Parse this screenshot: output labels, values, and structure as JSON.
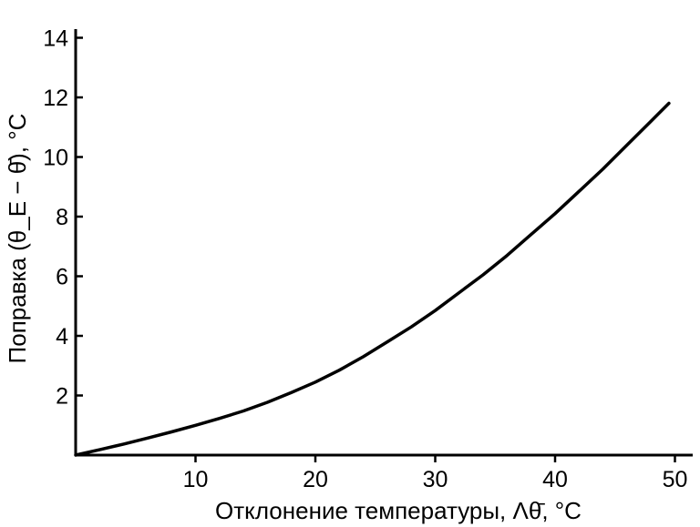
{
  "chart_data": {
    "type": "line",
    "title": "",
    "xlabel": "Отклонение температуры, Λθ̄, °C",
    "ylabel": "Поправка (θ_E − θ̄), °C",
    "xlim": [
      0,
      52
    ],
    "ylim": [
      0,
      14
    ],
    "x_ticks": [
      10,
      20,
      30,
      40,
      50
    ],
    "y_ticks": [
      2,
      4,
      6,
      8,
      10,
      12,
      14
    ],
    "x_tick_labels": [
      "10",
      "20",
      "30",
      "40",
      "50"
    ],
    "y_tick_labels": [
      "2",
      "4",
      "6",
      "8",
      "10",
      "12",
      "14"
    ],
    "grid": false,
    "legend": "none",
    "line_color": "#000000",
    "series": [
      {
        "x": [
          0,
          2,
          4,
          6,
          8,
          10,
          12,
          14,
          16,
          18,
          20,
          22,
          24,
          26,
          28,
          30,
          32,
          34,
          36,
          38,
          40,
          42,
          44,
          46,
          48,
          49.5
        ],
        "values": [
          0,
          0.18,
          0.37,
          0.57,
          0.78,
          1.0,
          1.23,
          1.48,
          1.77,
          2.1,
          2.45,
          2.85,
          3.3,
          3.8,
          4.3,
          4.85,
          5.45,
          6.05,
          6.7,
          7.4,
          8.1,
          8.85,
          9.6,
          10.4,
          11.2,
          11.8
        ]
      }
    ]
  }
}
